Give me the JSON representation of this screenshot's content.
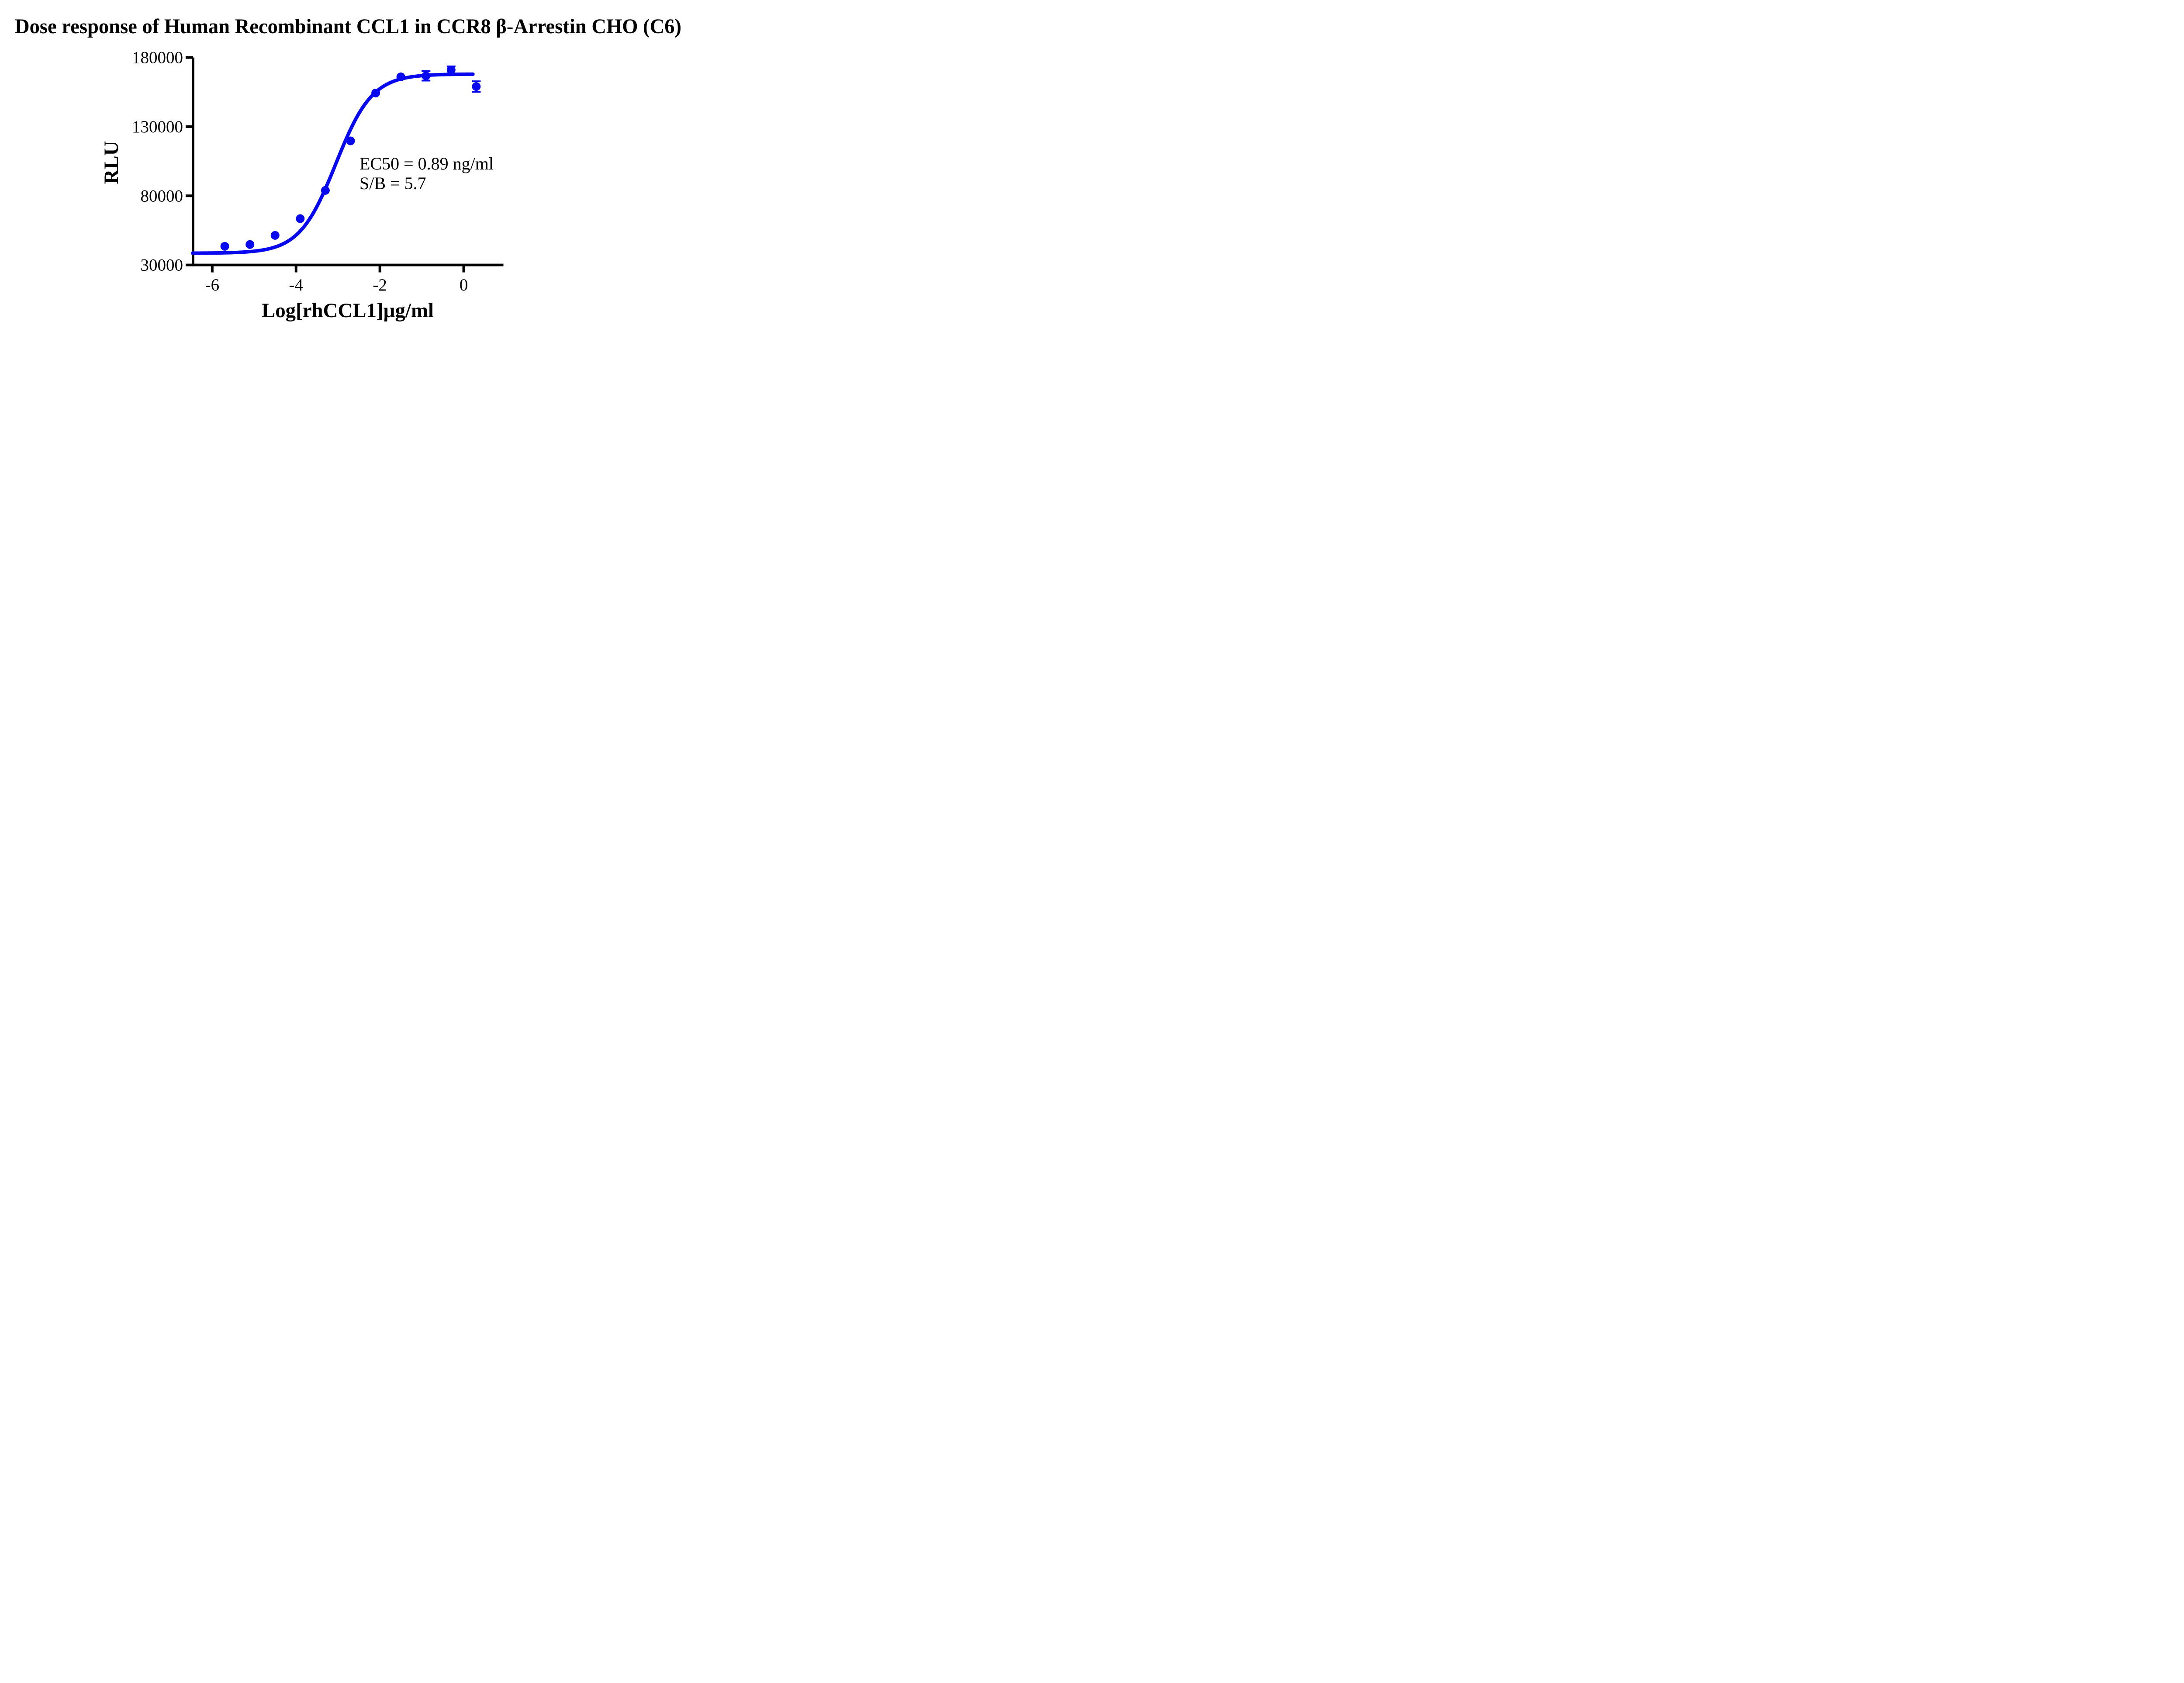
{
  "title": "Dose response of Human Recombinant CCL1 in CCR8 β-Arrestin CHO (C6)",
  "colors": {
    "curve_blue": "#0808F0",
    "axis_black": "#000000",
    "background": "#FFFFFF"
  },
  "chart_data": {
    "type": "scatter",
    "title": "Dose response of Human Recombinant CCL1 in CCR8 β-Arrestin CHO (C6)",
    "xlabel": "Log[rhCCL1]µg/ml",
    "ylabel": "RLU",
    "x_ticks": [
      -6,
      -4,
      -2,
      0
    ],
    "y_ticks": [
      30000,
      80000,
      130000,
      180000
    ],
    "xlim": [
      -6.47,
      1.0
    ],
    "ylim": [
      30000,
      180000
    ],
    "grid": false,
    "legend": "none",
    "series": [
      {
        "name": "rhCCL1",
        "marker": "circle",
        "points": [
          {
            "x": -5.7,
            "y": 43500
          },
          {
            "x": -5.1,
            "y": 44800
          },
          {
            "x": -4.5,
            "y": 51400
          },
          {
            "x": -3.9,
            "y": 63500
          },
          {
            "x": -3.3,
            "y": 83900
          },
          {
            "x": -2.7,
            "y": 119700
          },
          {
            "x": -2.1,
            "y": 154300
          },
          {
            "x": -1.5,
            "y": 166000
          },
          {
            "x": -0.9,
            "y": 166700,
            "err": 3400
          },
          {
            "x": -0.3,
            "y": 171000,
            "err": 2500
          },
          {
            "x": 0.3,
            "y": 159000,
            "err": 3800
          }
        ]
      }
    ],
    "curve_fit": {
      "model": "four-parameter logistic",
      "bottom": 38500,
      "top": 168000,
      "logEC50": -3.05,
      "hill": 1.0,
      "x_start": -6.47,
      "x_end": 0.22
    },
    "ec50_label": "EC50 = 0.89 ng/ml",
    "sb_label": "S/B = 5.7"
  }
}
